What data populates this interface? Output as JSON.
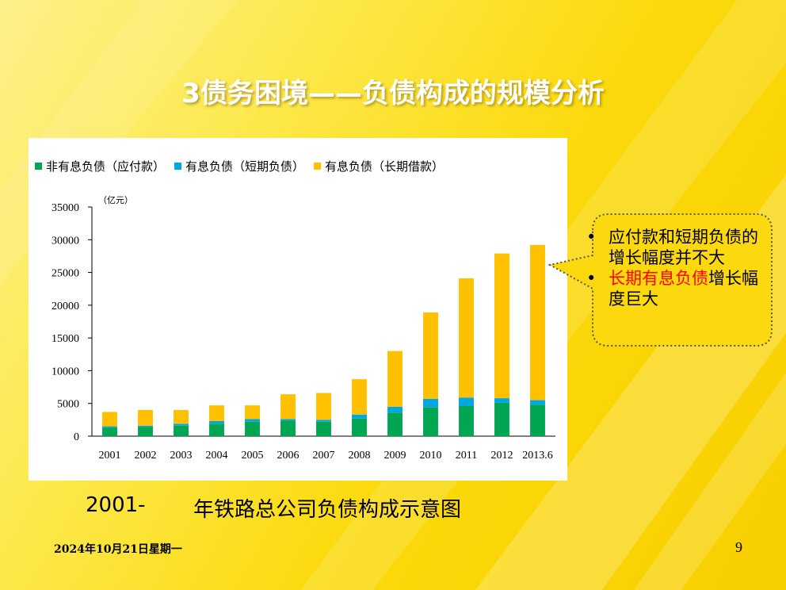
{
  "slide": {
    "title": "3债务困境——负债构成的规模分析",
    "caption_prefix": "2001-",
    "caption_main": "年铁路总公司负债构成示意图",
    "date": "2024年10月21日星期一",
    "page_number": "9"
  },
  "callout": {
    "item1": "应付款和短期负债的增长幅度并不大",
    "item2_highlight": "长期有息负债",
    "item2_rest": "增长幅度巨大",
    "highlight_color": "#ff0000"
  },
  "chart_data": {
    "type": "bar",
    "stacked": true,
    "unit_label": "（亿元）",
    "categories": [
      "2001",
      "2002",
      "2003",
      "2004",
      "2005",
      "2006",
      "2007",
      "2008",
      "2009",
      "2010",
      "2011",
      "2012",
      "2013.6"
    ],
    "series": [
      {
        "name": "非有息负债（应付款）",
        "color": "#00a651",
        "values": [
          1300,
          1400,
          1600,
          1900,
          2200,
          2300,
          2200,
          2700,
          3600,
          4400,
          4600,
          5100,
          4800
        ]
      },
      {
        "name": "有息负债（短期负债）",
        "color": "#00a8e1",
        "values": [
          200,
          200,
          300,
          400,
          400,
          300,
          300,
          600,
          900,
          1300,
          1300,
          700,
          700
        ]
      },
      {
        "name": "有息负债（长期借款）",
        "color": "#ffc000",
        "values": [
          2200,
          2400,
          2100,
          2400,
          2100,
          3800,
          4100,
          5400,
          8500,
          13200,
          18200,
          22100,
          23700
        ]
      }
    ],
    "ylim": [
      0,
      35000
    ],
    "yticks": [
      0,
      5000,
      10000,
      15000,
      20000,
      25000,
      30000,
      35000
    ],
    "legend_position": "top",
    "grid": false
  }
}
